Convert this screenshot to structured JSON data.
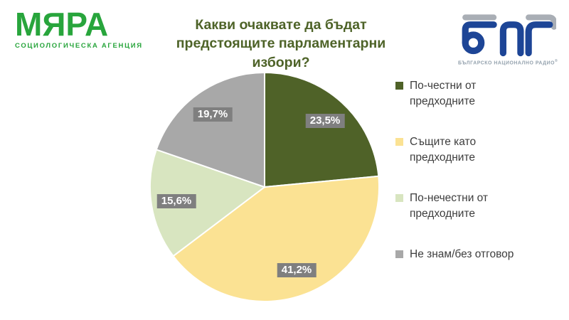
{
  "header": {
    "agency": {
      "name": "МЯРА",
      "subtitle": "СОЦИОЛОГИЧЕСКА АГЕНЦИЯ",
      "brand_color": "#28a53c"
    },
    "title_line1": "Какви очаквате да бъдат",
    "title_line2": "предстоящите парламентарни избори?",
    "title_color": "#4e6328",
    "bnr": {
      "caption": "БЪЛГАРСКО НАЦИОНАЛНО РАДИО",
      "registered_mark": "®",
      "blue": "#1d4596",
      "gray": "#a9aeb5"
    }
  },
  "chart_data": {
    "type": "pie",
    "title": "Какви очаквате да бъдат предстоящите парламентарни избори?",
    "start_angle_deg": 0,
    "direction": "clockwise",
    "legend_position": "right",
    "slices": [
      {
        "label": "По-честни от предходните",
        "value": 23.5,
        "display": "23,5%",
        "color": "#4f6228"
      },
      {
        "label": "Същите като предходните",
        "value": 41.2,
        "display": "41,2%",
        "color": "#fbe293"
      },
      {
        "label": "По-нечестни от предходните",
        "value": 15.6,
        "display": "15,6%",
        "color": "#d8e5c0"
      },
      {
        "label": "Не знам/без отговор",
        "value": 19.7,
        "display": "19,7%",
        "color": "#a8a8a8"
      }
    ],
    "data_label_style": {
      "background": "#7f7f7f",
      "text_color": "#ffffff"
    },
    "slice_border_color": "#ffffff"
  }
}
